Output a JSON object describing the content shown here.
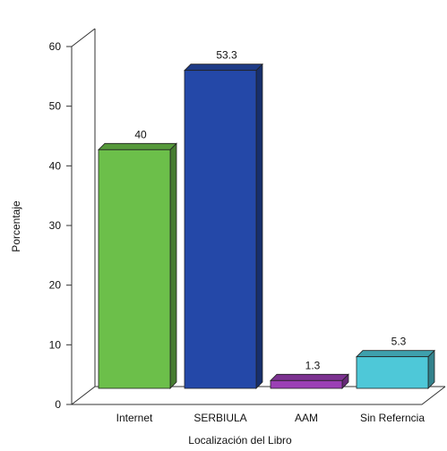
{
  "chart_data": {
    "type": "bar",
    "style": "3d",
    "xlabel": "Localización del Libro",
    "ylabel": "Porcentaje",
    "ylim": [
      0,
      60
    ],
    "yticks": [
      "0",
      "10",
      "20",
      "30",
      "40",
      "50",
      "60"
    ],
    "grid": false,
    "categories": [
      "Internet",
      "SERBIULA",
      "AAM",
      "Sin Referncia"
    ],
    "values": [
      40,
      53.3,
      1.3,
      5.3
    ],
    "data_labels": [
      "40",
      "53.3",
      "1.3",
      "5.3"
    ],
    "colors": [
      "#6cbf4a",
      "#2448a8",
      "#9b3fb5",
      "#4ec8d8"
    ]
  }
}
